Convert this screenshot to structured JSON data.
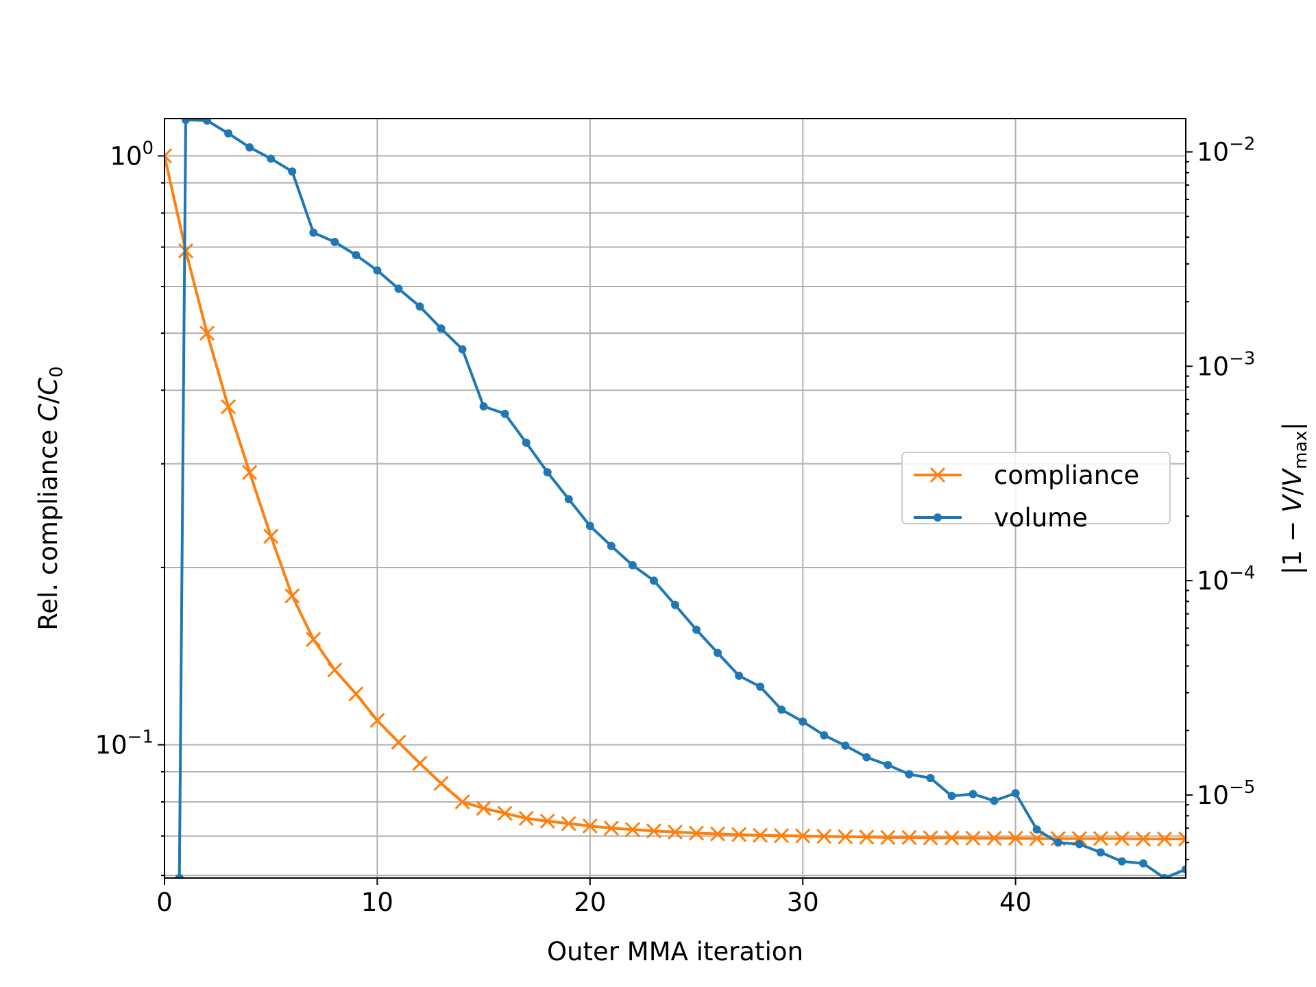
{
  "chart_data": {
    "type": "line",
    "title": "",
    "xlabel": "Outer MMA iteration",
    "ylabel_left": "Rel. compliance C/C₀",
    "ylabel_right": "|1 − V/Vₘₐₓ|",
    "xlim": [
      0,
      48
    ],
    "ylim_left": [
      0.0594,
      1.157
    ],
    "ylim_right": [
      4.1e-06,
      0.0143
    ],
    "yscale_left": "log",
    "yscale_right": "log",
    "x_ticks": [
      0,
      10,
      20,
      30,
      40
    ],
    "x_tick_labels": [
      "0",
      "10",
      "20",
      "30",
      "40"
    ],
    "left_tick_labels": [
      {
        "value": 1,
        "base": "10",
        "exp": "0"
      },
      {
        "value": 0.1,
        "base": "10",
        "exp": "−1"
      }
    ],
    "right_tick_labels": [
      {
        "value": 0.01,
        "base": "10",
        "exp": "−2"
      },
      {
        "value": 0.001,
        "base": "10",
        "exp": "−3"
      },
      {
        "value": 0.0001,
        "base": "10",
        "exp": "−4"
      },
      {
        "value": 1e-05,
        "base": "10",
        "exp": "−5"
      }
    ],
    "grid": true,
    "legend_position": "center-right",
    "series": [
      {
        "name": "compliance",
        "axis": "left",
        "color": "#ff7f0e",
        "marker": "x",
        "x": [
          0,
          1,
          2,
          3,
          4,
          5,
          6,
          7,
          8,
          9,
          10,
          11,
          12,
          13,
          14,
          15,
          16,
          17,
          18,
          19,
          20,
          21,
          22,
          23,
          24,
          25,
          26,
          27,
          28,
          29,
          30,
          31,
          32,
          33,
          34,
          35,
          36,
          37,
          38,
          39,
          40,
          41,
          42,
          43,
          44,
          45,
          46,
          47,
          48
        ],
        "values": [
          1.0,
          0.69,
          0.5,
          0.375,
          0.29,
          0.226,
          0.179,
          0.151,
          0.134,
          0.122,
          0.11,
          0.101,
          0.093,
          0.086,
          0.08,
          0.078,
          0.0765,
          0.075,
          0.0742,
          0.0735,
          0.0728,
          0.0722,
          0.0718,
          0.0714,
          0.0711,
          0.0708,
          0.0706,
          0.0704,
          0.0702,
          0.0701,
          0.07,
          0.0699,
          0.0698,
          0.0697,
          0.0696,
          0.0696,
          0.0695,
          0.0695,
          0.0694,
          0.0694,
          0.0694,
          0.0693,
          0.0693,
          0.0693,
          0.0693,
          0.0693,
          0.0692,
          0.0692,
          0.0692
        ]
      },
      {
        "name": "volume",
        "axis": "right",
        "color": "#1f77b4",
        "marker": "o",
        "x": [
          0.7,
          1,
          2,
          3,
          4,
          5,
          6,
          7,
          8,
          9,
          10,
          11,
          12,
          13,
          14,
          15,
          16,
          17,
          18,
          19,
          20,
          21,
          22,
          23,
          24,
          25,
          26,
          27,
          28,
          29,
          30,
          31,
          32,
          33,
          34,
          35,
          36,
          37,
          38,
          39,
          40,
          41,
          42,
          43,
          44,
          45,
          46,
          47,
          48
        ],
        "values": [
          4.1e-06,
          0.0141,
          0.014,
          0.0122,
          0.0105,
          0.0093,
          0.0081,
          0.0042,
          0.0038,
          0.0033,
          0.0028,
          0.0023,
          0.0019,
          0.0015,
          0.0012,
          0.00065,
          0.0006,
          0.00044,
          0.00032,
          0.00024,
          0.00018,
          0.000145,
          0.000118,
          0.0001,
          7.7e-05,
          5.9e-05,
          4.6e-05,
          3.6e-05,
          3.2e-05,
          2.5e-05,
          2.2e-05,
          1.9e-05,
          1.7e-05,
          1.5e-05,
          1.38e-05,
          1.25e-05,
          1.2e-05,
          9.9e-06,
          1.01e-05,
          9.4e-06,
          1.02e-05,
          6.9e-06,
          6e-06,
          5.9e-06,
          5.4e-06,
          4.9e-06,
          4.8e-06,
          4.1e-06,
          4.5e-06
        ]
      }
    ]
  }
}
